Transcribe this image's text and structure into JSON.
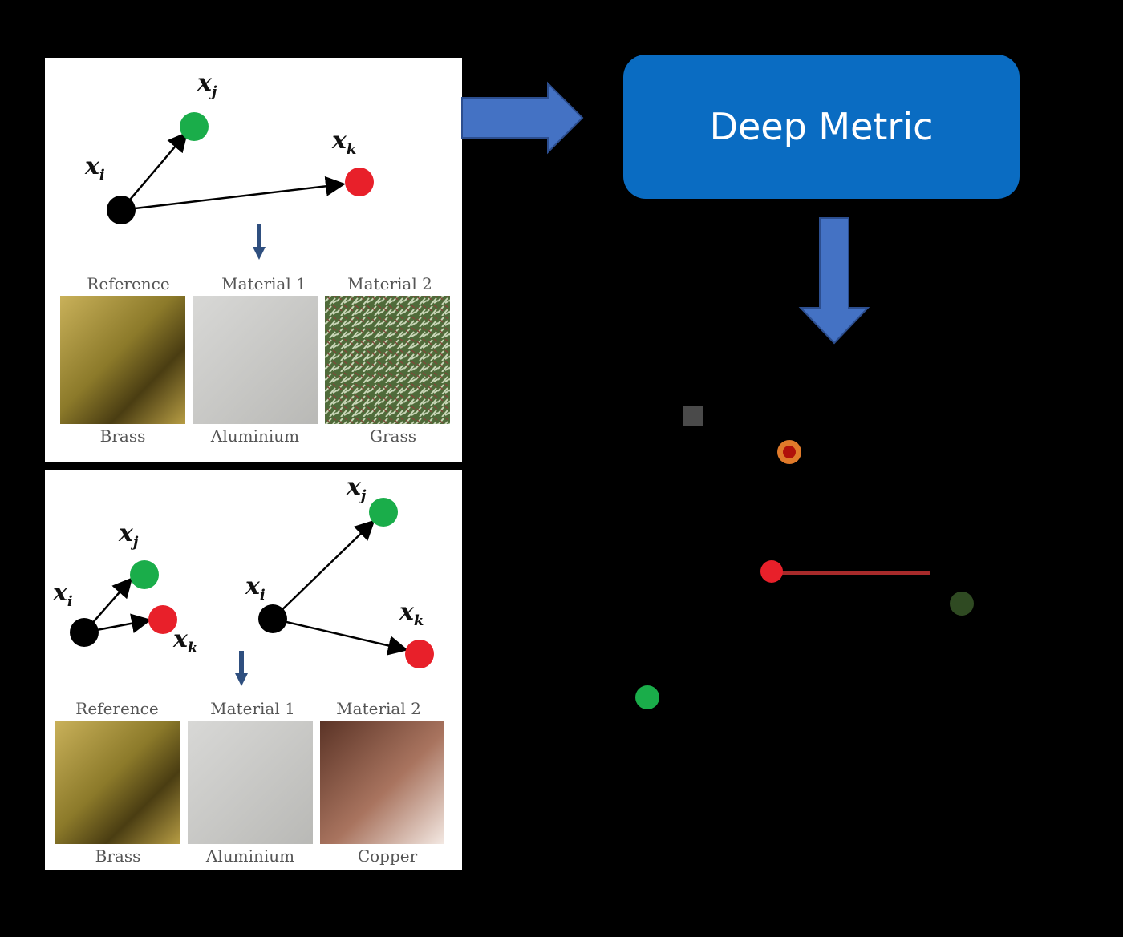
{
  "colors": {
    "positive": "#1aad4a",
    "negative": "#e8202a",
    "anchor": "#000000",
    "box": "#0a6cc2",
    "arrow": "#4472c4"
  },
  "top_example": {
    "labels": {
      "anchor": "x",
      "anchor_sub": "i",
      "positive": "x",
      "positive_sub": "j",
      "negative": "x",
      "negative_sub": "k"
    },
    "headers": [
      "Reference",
      "Material 1",
      "Material 2"
    ],
    "materials": [
      "Brass",
      "Aluminium",
      "Grass"
    ]
  },
  "bottom_example": {
    "left": {
      "anchor": "x",
      "anchor_sub": "i",
      "positive": "x",
      "positive_sub": "j",
      "negative": "x",
      "negative_sub": "k"
    },
    "right": {
      "anchor": "x",
      "anchor_sub": "i",
      "positive": "x",
      "positive_sub": "j",
      "negative": "x",
      "negative_sub": "k"
    },
    "headers": [
      "Reference",
      "Material 1",
      "Material 2"
    ],
    "materials": [
      "Brass",
      "Aluminium",
      "Copper"
    ]
  },
  "process": {
    "box_label": "Deep Metric"
  }
}
